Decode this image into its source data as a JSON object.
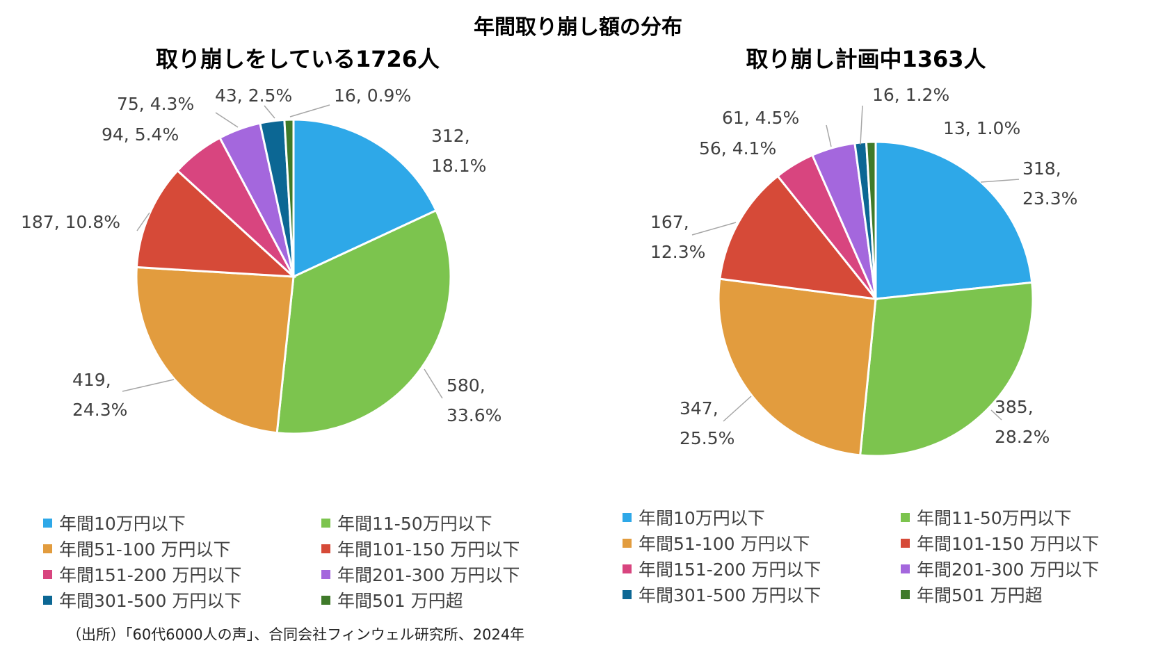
{
  "title": "年間取り崩し額の分布",
  "legend_labels": [
    "年間10万円以下",
    "年間11-50万円以下",
    "年間51-100 万円以下",
    "年間101-150 万円以下",
    "年間151-200 万円以下",
    "年間201-300 万円以下",
    "年間301-500 万円以下",
    "年間501 万円超"
  ],
  "colors": [
    "#2EA8E8",
    "#7CC44E",
    "#E29C3E",
    "#D64A38",
    "#D8457F",
    "#A467DD",
    "#0C6794",
    "#3F7A2A"
  ],
  "source": "（出所）「60代6000人の声」、合同会社フィンウェル研究所、2024年",
  "chart_data": [
    {
      "type": "pie",
      "title": "取り崩しをしている1726人",
      "categories": [
        "年間10万円以下",
        "年間11-50万円以下",
        "年間51-100 万円以下",
        "年間101-150 万円以下",
        "年間151-200 万円以下",
        "年間201-300 万円以下",
        "年間301-500 万円以下",
        "年間501 万円超"
      ],
      "values": [
        312,
        580,
        419,
        187,
        94,
        75,
        43,
        16
      ],
      "percents": [
        "18.1%",
        "33.6%",
        "24.3%",
        "10.8%",
        "5.4%",
        "4.3%",
        "2.5%",
        "0.9%"
      ],
      "legend": "bottom"
    },
    {
      "type": "pie",
      "title": "取り崩し計画中1363人",
      "categories": [
        "年間10万円以下",
        "年間11-50万円以下",
        "年間51-100 万円以下",
        "年間101-150 万円以下",
        "年間151-200 万円以下",
        "年間201-300 万円以下",
        "年間301-500 万円以下",
        "年間501 万円超"
      ],
      "values": [
        318,
        385,
        347,
        167,
        56,
        61,
        16,
        13
      ],
      "percents": [
        "23.3%",
        "28.2%",
        "25.5%",
        "12.3%",
        "4.1%",
        "4.5%",
        "1.2%",
        "1.0%"
      ],
      "legend": "bottom"
    }
  ]
}
